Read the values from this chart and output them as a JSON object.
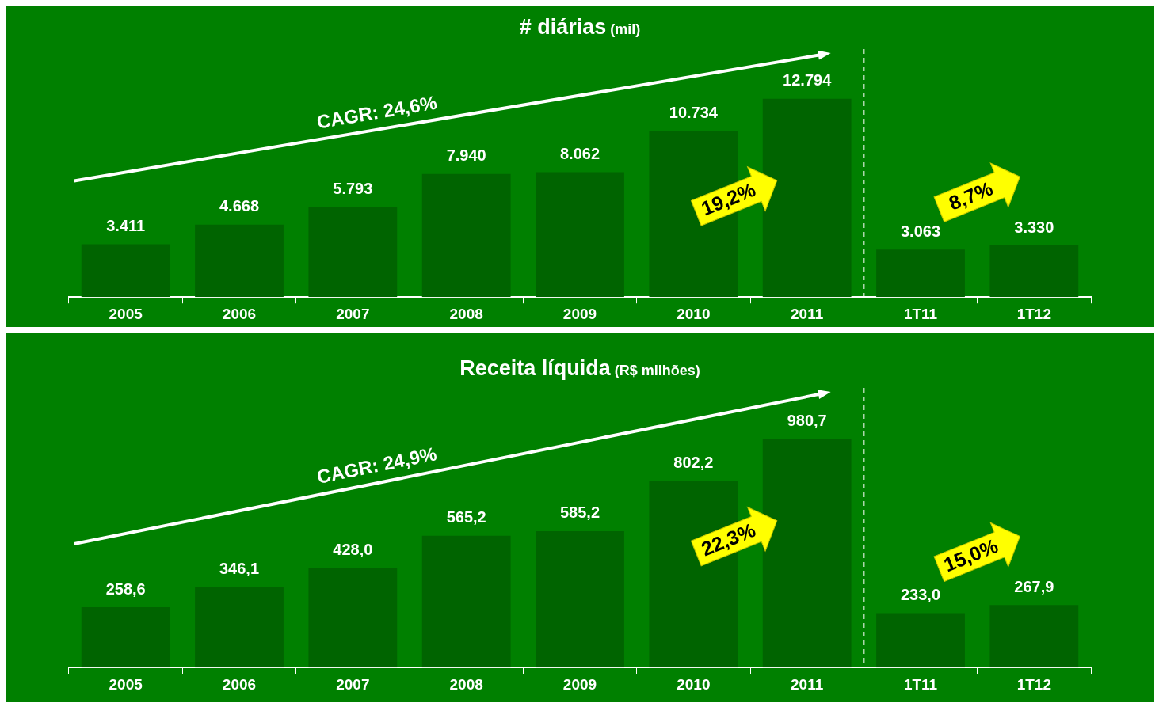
{
  "chart_data": [
    {
      "type": "bar",
      "title": "# diárias",
      "subtitle": "(mil)",
      "categories": [
        "2005",
        "2006",
        "2007",
        "2008",
        "2009",
        "2010",
        "2011",
        "1T11",
        "1T12"
      ],
      "values": [
        3411,
        4668,
        5793,
        7940,
        8062,
        10734,
        12794,
        3063,
        3330
      ],
      "value_labels": [
        "3.411",
        "4.668",
        "5.793",
        "7.940",
        "8.062",
        "10.734",
        "12.794",
        "3.063",
        "3.330"
      ],
      "color": "#006400",
      "annotations": [
        "CAGR: 24,6%",
        "19,2%",
        "8,7%"
      ]
    },
    {
      "type": "bar",
      "title": "Receita líquida",
      "subtitle": "(R$ milhões)",
      "categories": [
        "2005",
        "2006",
        "2007",
        "2008",
        "2009",
        "2010",
        "2011",
        "1T11",
        "1T12"
      ],
      "values": [
        258.6,
        346.1,
        428.0,
        565.2,
        585.2,
        802.2,
        980.7,
        233.0,
        267.9
      ],
      "value_labels": [
        "258,6",
        "346,1",
        "428,0",
        "565,2",
        "585,2",
        "802,2",
        "980,7",
        "233,0",
        "267,9"
      ],
      "color": "#006400",
      "annotations": [
        "CAGR: 24,9%",
        "22,3%",
        "15,0%"
      ]
    }
  ]
}
